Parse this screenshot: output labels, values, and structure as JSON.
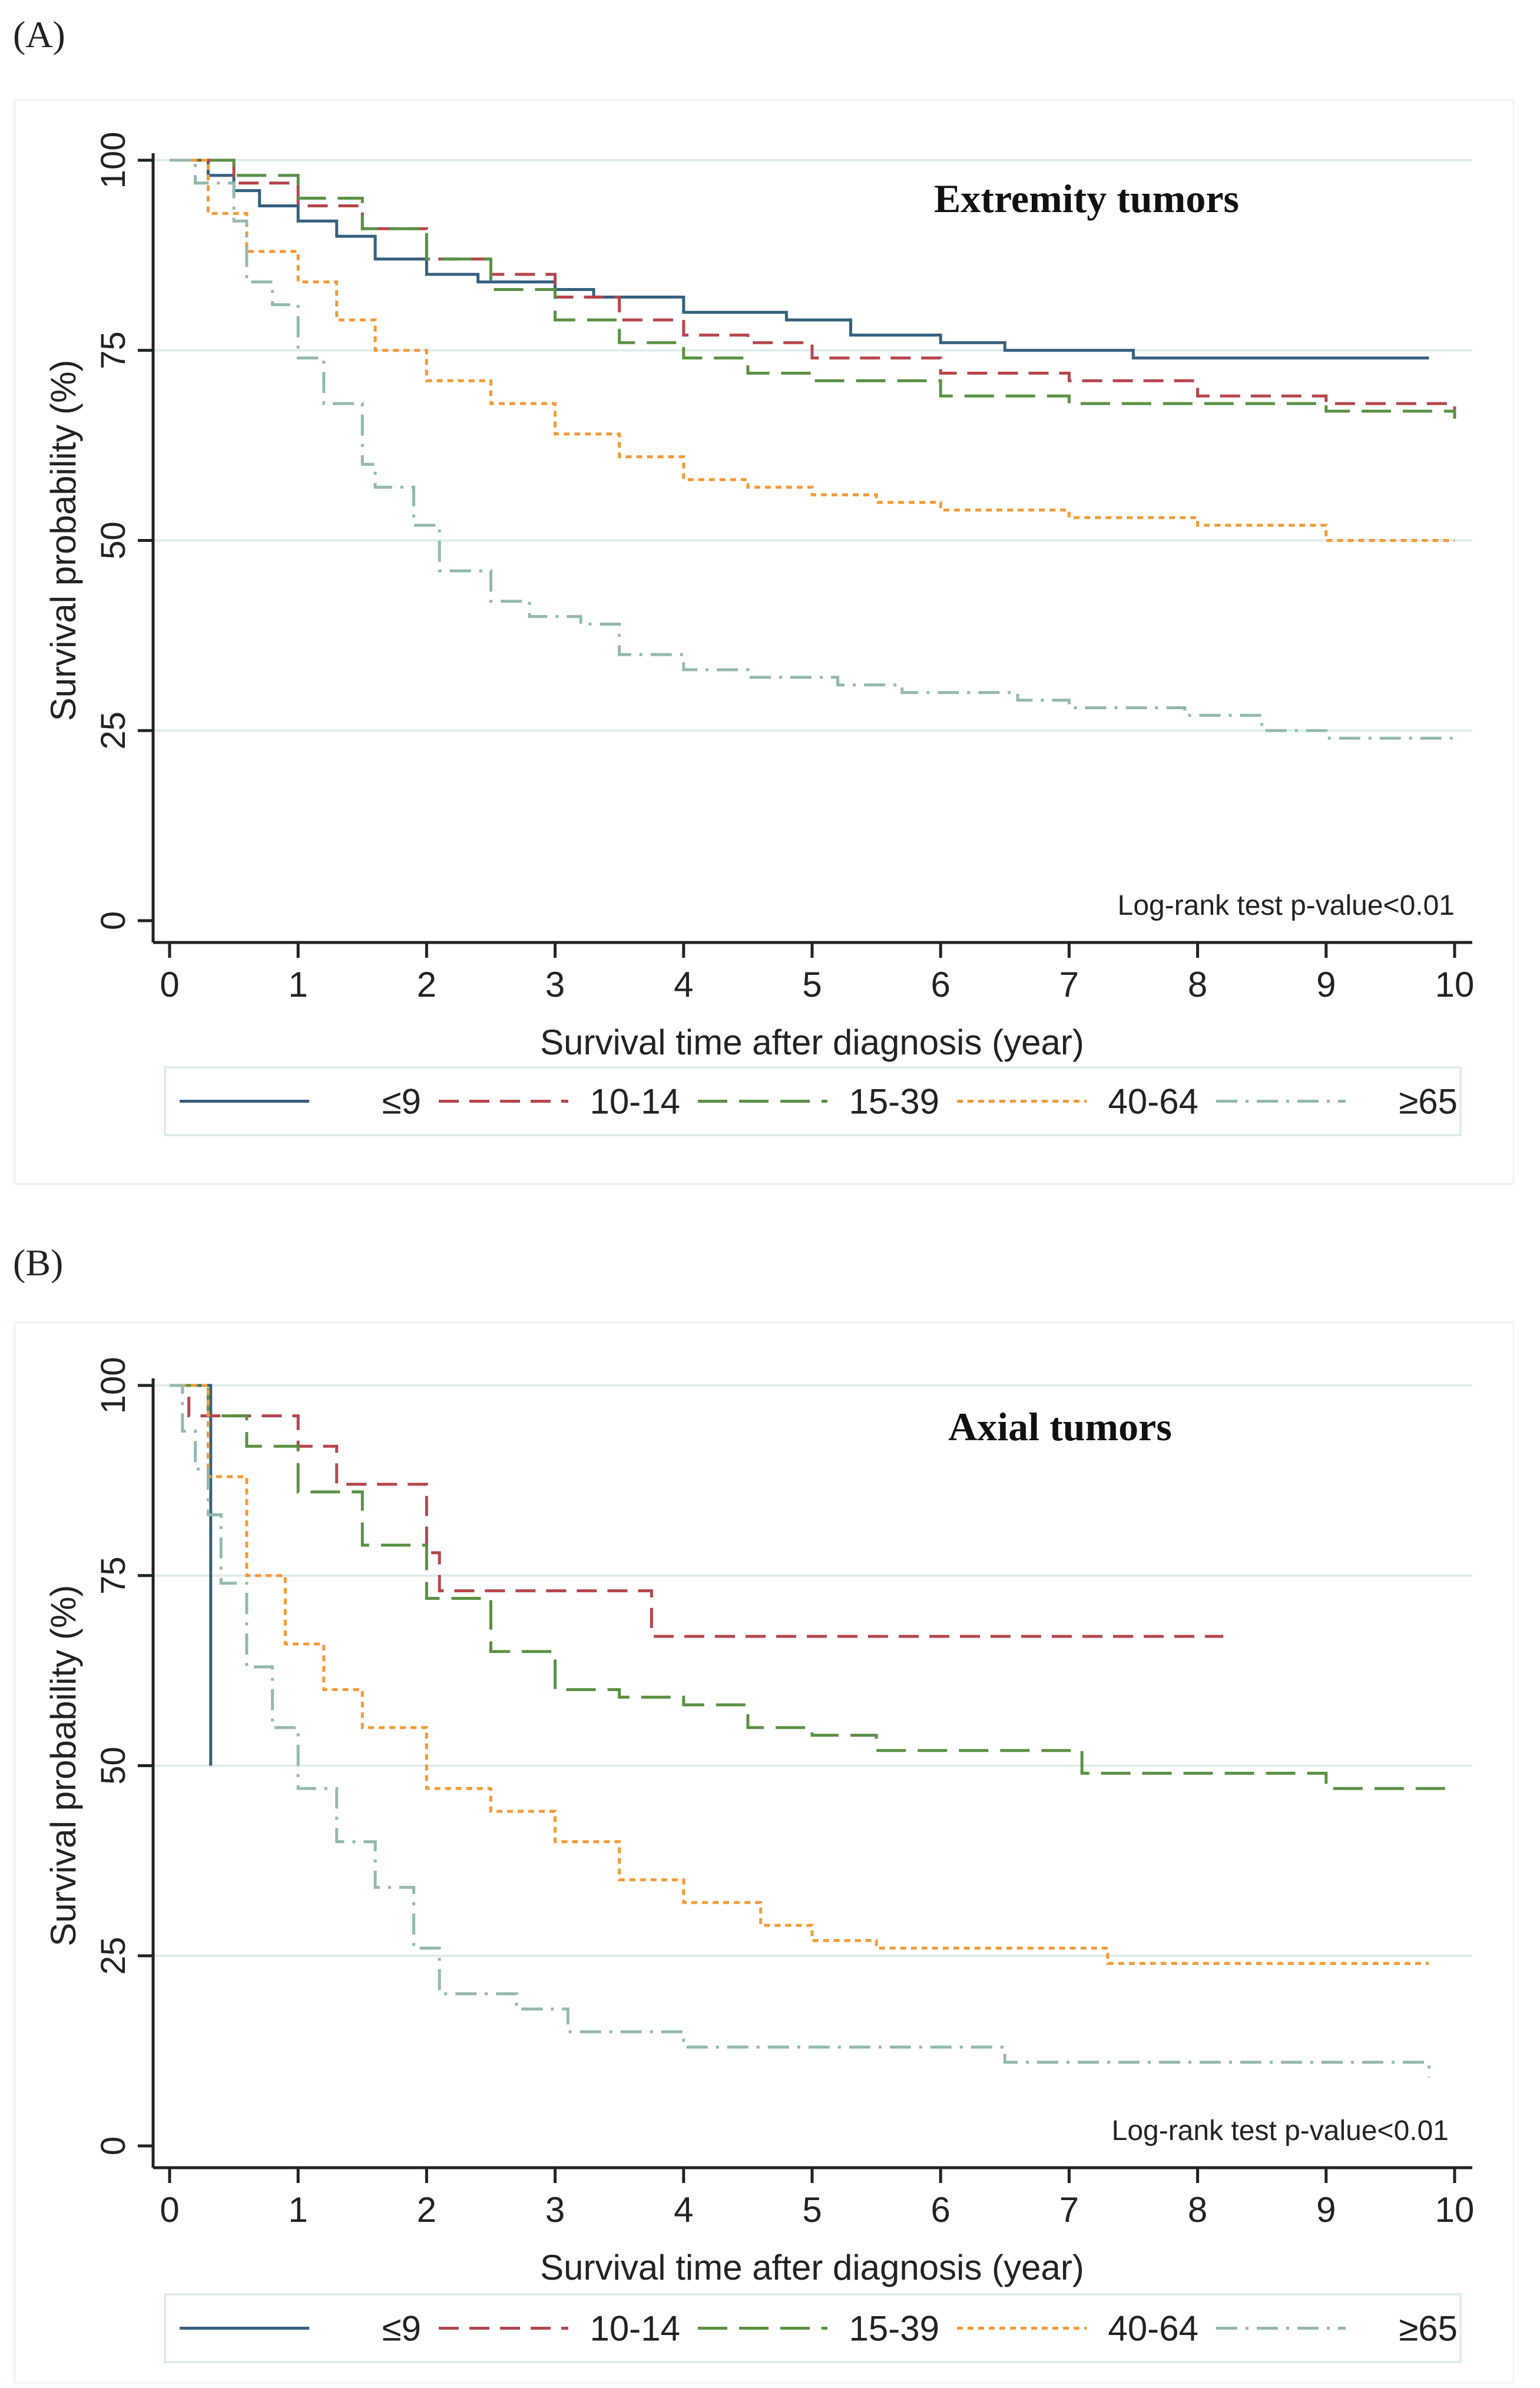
{
  "chart_data": [
    {
      "panel_label": "(A)",
      "type": "line",
      "title": "Extremity tumors",
      "xlabel": "Survival time after diagnosis (year)",
      "ylabel": "Survival probability (%)",
      "xlim": [
        0,
        10
      ],
      "ylim": [
        0,
        100
      ],
      "xticks": [
        0,
        1,
        2,
        3,
        4,
        5,
        6,
        7,
        8,
        9,
        10
      ],
      "yticks": [
        0,
        25,
        50,
        75,
        100
      ],
      "grid": "horizontal",
      "annotation": "Log-rank test p-value<0.01",
      "legend_position": "bottom",
      "series": [
        {
          "name": "≤9",
          "color": "#35607f",
          "dash": "solid",
          "x": [
            0,
            0.3,
            0.5,
            0.7,
            1.0,
            1.3,
            1.6,
            2.0,
            2.4,
            3.0,
            3.3,
            4.0,
            4.8,
            5.3,
            6.0,
            6.5,
            7.0,
            7.5,
            8.0,
            9.8
          ],
          "y": [
            100,
            98,
            96,
            94,
            92,
            90,
            87,
            85,
            84,
            83,
            82,
            80,
            79,
            77,
            76,
            75,
            75,
            74,
            74,
            74
          ]
        },
        {
          "name": "10-14",
          "color": "#b5464c",
          "dash": "dash",
          "x": [
            0,
            0.5,
            1.0,
            1.5,
            2.0,
            2.5,
            3.0,
            3.5,
            4.0,
            4.5,
            5.0,
            6.0,
            7.0,
            8.0,
            9.0,
            10.0
          ],
          "y": [
            100,
            97,
            94,
            91,
            87,
            85,
            82,
            79,
            77,
            76,
            74,
            72,
            71,
            69,
            68,
            67
          ]
        },
        {
          "name": "15-39",
          "color": "#5a9143",
          "dash": "longdash",
          "x": [
            0,
            0.5,
            1.0,
            1.5,
            2.0,
            2.5,
            3.0,
            3.5,
            4.0,
            4.5,
            5.0,
            6.0,
            7.0,
            8.0,
            9.0,
            10.0
          ],
          "y": [
            100,
            98,
            95,
            91,
            87,
            83,
            79,
            76,
            74,
            72,
            71,
            69,
            68,
            68,
            67,
            66
          ]
        },
        {
          "name": "40-64",
          "color": "#f29b38",
          "dash": "dot",
          "x": [
            0,
            0.3,
            0.6,
            1.0,
            1.3,
            1.6,
            2.0,
            2.5,
            3.0,
            3.5,
            4.0,
            4.5,
            5.0,
            5.5,
            6.0,
            7.0,
            8.0,
            8.6,
            9.0,
            10.0
          ],
          "y": [
            100,
            93,
            88,
            84,
            79,
            75,
            71,
            68,
            64,
            61,
            58,
            57,
            56,
            55,
            54,
            53,
            52,
            52,
            50,
            50
          ]
        },
        {
          "name": "≥65",
          "color": "#94b9ad",
          "dash": "dashdot",
          "x": [
            0,
            0.2,
            0.5,
            0.6,
            0.8,
            1.0,
            1.2,
            1.5,
            1.6,
            1.9,
            2.1,
            2.5,
            2.8,
            3.2,
            3.5,
            4.0,
            4.5,
            5.2,
            5.7,
            6.6,
            7.0,
            7.9,
            8.5,
            9.0,
            10.0
          ],
          "y": [
            100,
            97,
            92,
            84,
            81,
            74,
            68,
            60,
            57,
            52,
            46,
            42,
            40,
            39,
            35,
            33,
            32,
            31,
            30,
            29,
            28,
            27,
            25,
            24,
            24
          ]
        }
      ]
    },
    {
      "panel_label": "(B)",
      "type": "line",
      "title": "Axial tumors",
      "xlabel": "Survival time after diagnosis (year)",
      "ylabel": "Survival probability (%)",
      "xlim": [
        0,
        10
      ],
      "ylim": [
        0,
        100
      ],
      "xticks": [
        0,
        1,
        2,
        3,
        4,
        5,
        6,
        7,
        8,
        9,
        10
      ],
      "yticks": [
        0,
        25,
        50,
        75,
        100
      ],
      "grid": "horizontal",
      "annotation": "Log-rank test p-value<0.01",
      "legend_position": "bottom",
      "series": [
        {
          "name": "≤9",
          "color": "#35607f",
          "dash": "solid",
          "x": [
            0,
            0.32,
            0.32,
            0.32
          ],
          "y": [
            100,
            100,
            75,
            50
          ]
        },
        {
          "name": "10-14",
          "color": "#b5464c",
          "dash": "dash",
          "x": [
            0,
            0.15,
            0.5,
            1.0,
            1.3,
            1.9,
            2.0,
            2.1,
            3.75,
            8.2
          ],
          "y": [
            100,
            96,
            96,
            92,
            87,
            87,
            78,
            73,
            67,
            67
          ]
        },
        {
          "name": "15-39",
          "color": "#5a9143",
          "dash": "longdash",
          "x": [
            0,
            0.3,
            0.6,
            1.0,
            1.5,
            2.0,
            2.5,
            3.0,
            3.5,
            4.0,
            4.5,
            5.0,
            5.5,
            6.5,
            7.1,
            9.0,
            10.0
          ],
          "y": [
            100,
            96,
            92,
            86,
            79,
            72,
            65,
            60,
            59,
            58,
            55,
            54,
            52,
            52,
            49,
            47,
            47
          ]
        },
        {
          "name": "40-64",
          "color": "#f29b38",
          "dash": "dot",
          "x": [
            0,
            0.3,
            0.6,
            0.9,
            1.2,
            1.5,
            2.0,
            2.5,
            3.0,
            3.5,
            4.0,
            4.6,
            5.0,
            5.5,
            7.3,
            9.8
          ],
          "y": [
            100,
            88,
            75,
            66,
            60,
            55,
            47,
            44,
            40,
            35,
            32,
            29,
            27,
            26,
            24,
            24
          ]
        },
        {
          "name": "≥65",
          "color": "#94b9ad",
          "dash": "dashdot",
          "x": [
            0,
            0.1,
            0.2,
            0.3,
            0.4,
            0.6,
            0.8,
            1.0,
            1.3,
            1.6,
            1.9,
            2.1,
            2.7,
            3.1,
            4.0,
            6.5,
            9.8
          ],
          "y": [
            100,
            94,
            89,
            83,
            74,
            63,
            55,
            47,
            40,
            34,
            26,
            20,
            18,
            15,
            13,
            11,
            9
          ]
        }
      ]
    }
  ]
}
